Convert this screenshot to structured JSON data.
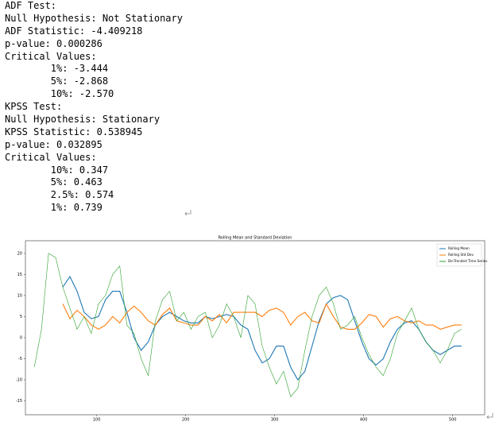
{
  "output_lines": [
    "ADF Test:",
    "Null Hypothesis: Not Stationary",
    "ADF Statistic: -4.409218",
    "p-value: 0.000286",
    "Critical Values:",
    "\t1%: -3.444",
    "\t5%: -2.868",
    "\t10%: -2.570",
    "KPSS Test:",
    "Null Hypothesis: Stationary",
    "KPSS Statistic: 0.538945",
    "p-value: 0.032895",
    "Critical Values:",
    "\t10%: 0.347",
    "\t5%: 0.463",
    "\t2.5%: 0.574",
    "\t1%: 0.739"
  ],
  "chart_data": {
    "type": "line",
    "title": "Rolling Mean and Standard Deviation",
    "x": [
      30,
      38,
      46,
      54,
      62,
      70,
      78,
      86,
      94,
      102,
      110,
      118,
      126,
      134,
      142,
      150,
      158,
      166,
      174,
      182,
      190,
      198,
      206,
      214,
      222,
      230,
      238,
      246,
      254,
      262,
      270,
      278,
      286,
      294,
      302,
      310,
      318,
      326,
      334,
      342,
      350,
      358,
      366,
      374,
      382,
      390,
      398,
      406,
      414,
      422,
      430,
      438,
      446,
      454,
      462,
      470,
      478,
      486,
      494,
      502,
      510
    ],
    "series": [
      {
        "name": "Rolling Mean",
        "color": "#1f77b4",
        "values": [
          null,
          null,
          null,
          null,
          12,
          14.5,
          11,
          6,
          4.5,
          5,
          9,
          11,
          11,
          6,
          0,
          -3,
          -1,
          3,
          5,
          6,
          5,
          4,
          3.5,
          3.5,
          5,
          4.5,
          5,
          5.5,
          5,
          3,
          2,
          -3,
          -6,
          -5,
          -2,
          -2,
          -7,
          -10,
          -8,
          -2,
          4,
          8,
          9.5,
          10,
          9,
          4,
          -1,
          -5,
          -6.5,
          -5,
          -1,
          2,
          3.5,
          4,
          2,
          -1,
          -3,
          -4,
          -3,
          -2,
          -2
        ]
      },
      {
        "name": "Rolling Std Dev",
        "color": "#ff7f0e",
        "values": [
          null,
          null,
          null,
          null,
          8,
          4.5,
          6.5,
          5,
          3,
          2,
          3,
          5,
          3.5,
          6,
          7.5,
          6,
          4,
          3,
          5.5,
          7,
          4,
          3.5,
          3,
          3,
          5,
          4,
          5.5,
          3.5,
          6,
          6,
          6,
          6,
          5,
          6.5,
          7,
          6,
          3,
          5,
          6,
          4,
          3.5,
          8,
          5,
          2.5,
          2,
          2,
          3.5,
          5.5,
          5,
          2.5,
          4.5,
          5,
          4,
          3.5,
          4,
          3,
          3,
          2,
          2.5,
          3,
          3
        ]
      },
      {
        "name": "De-Trended Time Series",
        "color": "#2ca02c",
        "values": [
          -7,
          2,
          20,
          19,
          12,
          7,
          2,
          5,
          1,
          8,
          10,
          15,
          17,
          3,
          1,
          -5,
          -9,
          4,
          9,
          11,
          4,
          6,
          2,
          5,
          6,
          0,
          3,
          8,
          5,
          0,
          10,
          8,
          -2,
          -7,
          -11,
          -8,
          -14,
          -12,
          -3,
          5,
          10,
          12,
          8,
          2,
          3,
          5,
          0,
          -4,
          -7,
          -9,
          -5,
          1,
          4,
          7,
          2,
          -1,
          -3,
          -6,
          -3,
          1,
          2
        ]
      }
    ],
    "xlim": [
      20,
      536
    ],
    "ylim": [
      -18.3,
      23
    ],
    "xticks": [
      100,
      200,
      300,
      400,
      500
    ],
    "yticks": [
      -15,
      -10,
      -5,
      0,
      5,
      10,
      15,
      20
    ],
    "legend": "upper right"
  }
}
